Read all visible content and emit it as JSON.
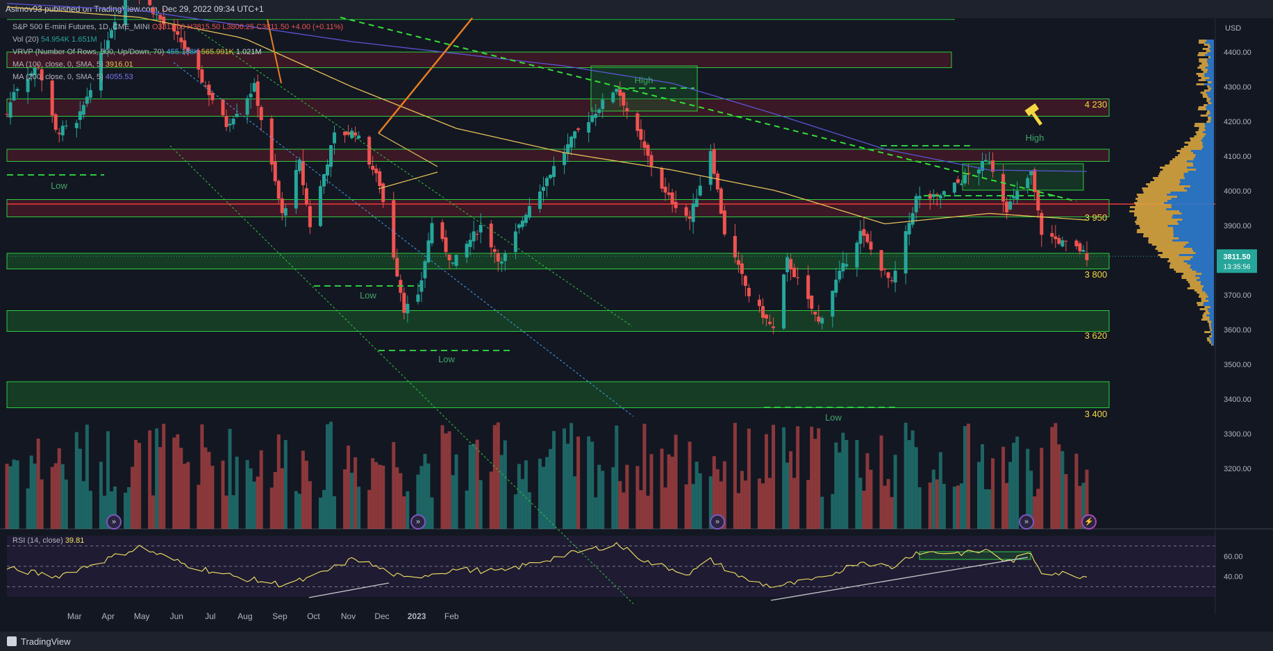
{
  "header": {
    "published": "Asimov93 published on TradingView.com, Dec 29, 2022 09:34 UTC+1"
  },
  "legend": {
    "symbol": "S&P 500 E-mini Futures, 1D, CME_MINI",
    "ohlc": "O3811.00  H3815.50  L3806.25  C3811.50  +4.00 (+0.11%)",
    "vol_label": "Vol (20)",
    "vol_values": "54.954K  1.651M",
    "vrvp_label": "VRVP (Number Of Rows, 500, Up/Down, 70)",
    "vrvp_up": "455.188K",
    "vrvp_down": "565.991K",
    "vrvp_total": "1.021M",
    "ma100_label": "MA (100, close, 0, SMA, 5)",
    "ma100_value": "3916.01",
    "ma200_label": "MA (200, close, 0, SMA, 5)",
    "ma200_value": "4055.53",
    "rsi_label": "RSI (14, close)",
    "rsi_value": "39.81"
  },
  "footer": {
    "brand": "TradingView"
  },
  "colors": {
    "background": "#131722",
    "up": "#26a69a",
    "down": "#ef5350",
    "ma100": "#e8c15a",
    "ma200": "#5b54d6",
    "zone_green": "#1a6b2a",
    "zone_red": "#6b1a2a",
    "level_label": "#f5d742",
    "trend_green": "#36e036",
    "rsi": "#f5e663"
  },
  "chart_data": {
    "type": "candlestick",
    "title": "S&P 500 E-mini Futures, 1D, CME_MINI",
    "y_axis_title": "USD",
    "ylim": [
      3150,
      4650
    ],
    "y_ticks": [
      "4400.00",
      "4300.00",
      "4200.00",
      "4100.00",
      "4000.00",
      "3900.00",
      "3800.00",
      "3700.00",
      "3600.00",
      "3500.00",
      "3400.00",
      "3300.00",
      "3200.00"
    ],
    "x_ticks": [
      "Mar",
      "Apr",
      "May",
      "Jun",
      "Jul",
      "Aug",
      "Sep",
      "Oct",
      "Nov",
      "Dec",
      "2023",
      "Feb"
    ],
    "last_price": {
      "value": "3811.50",
      "countdown": "13:35:56"
    },
    "levels": [
      {
        "label": "4 230",
        "value": 4230
      },
      {
        "label": "3 950",
        "value": 3950
      },
      {
        "label": "3 800",
        "value": 3800
      },
      {
        "label": "3 620",
        "value": 3620
      },
      {
        "label": "3 400",
        "value": 3400
      }
    ],
    "zones": [
      {
        "type": "resistance",
        "low": 4355,
        "high": 4400
      },
      {
        "type": "resistance",
        "low": 4215,
        "high": 4265
      },
      {
        "type": "resistance",
        "low": 4085,
        "high": 4120
      },
      {
        "type": "resistance",
        "low": 3925,
        "high": 3975
      },
      {
        "type": "support",
        "low": 3775,
        "high": 3820
      },
      {
        "type": "support",
        "low": 3595,
        "high": 3655
      },
      {
        "type": "support",
        "low": 3375,
        "high": 3450
      }
    ],
    "annotations": [
      "Low",
      "Low",
      "Low",
      "High",
      "High",
      "Low"
    ],
    "close_anchors": [
      {
        "x": "Feb 22",
        "y": 4220
      },
      {
        "x": "Feb 24",
        "y": 4290
      },
      {
        "x": "Mar 3",
        "y": 4360
      },
      {
        "x": "Mar 8",
        "y": 4170
      },
      {
        "x": "Mar 14",
        "y": 4190
      },
      {
        "x": "Mar 29",
        "y": 4610
      },
      {
        "x": "Apr 8",
        "y": 4480
      },
      {
        "x": "Apr 13",
        "y": 4430
      },
      {
        "x": "Apr 26",
        "y": 4190
      },
      {
        "x": "May 4",
        "y": 4300
      },
      {
        "x": "May 12",
        "y": 3930
      },
      {
        "x": "May 17",
        "y": 4080
      },
      {
        "x": "May 20",
        "y": 3900
      },
      {
        "x": "May 27",
        "y": 4160
      },
      {
        "x": "Jun 2",
        "y": 4170
      },
      {
        "x": "Jun 9",
        "y": 4020
      },
      {
        "x": "Jun 16",
        "y": 3660
      },
      {
        "x": "Jun 20",
        "y": 3690
      },
      {
        "x": "Jun 24",
        "y": 3910
      },
      {
        "x": "Jun 30",
        "y": 3790
      },
      {
        "x": "Jul 8",
        "y": 3900
      },
      {
        "x": "Jul 14",
        "y": 3790
      },
      {
        "x": "Jul 22",
        "y": 3960
      },
      {
        "x": "Aug 4",
        "y": 4160
      },
      {
        "x": "Aug 16",
        "y": 4300
      },
      {
        "x": "Aug 23",
        "y": 4140
      },
      {
        "x": "Aug 30",
        "y": 3990
      },
      {
        "x": "Sep 6",
        "y": 3920
      },
      {
        "x": "Sep 12",
        "y": 4120
      },
      {
        "x": "Sep 16",
        "y": 3880
      },
      {
        "x": "Sep 23",
        "y": 3700
      },
      {
        "x": "Sep 30",
        "y": 3600
      },
      {
        "x": "Oct 4",
        "y": 3800
      },
      {
        "x": "Oct 13",
        "y": 3620
      },
      {
        "x": "Oct 18",
        "y": 3740
      },
      {
        "x": "Oct 25",
        "y": 3880
      },
      {
        "x": "Nov 3",
        "y": 3730
      },
      {
        "x": "Nov 10",
        "y": 3980
      },
      {
        "x": "Nov 16",
        "y": 3980
      },
      {
        "x": "Nov 23",
        "y": 4030
      },
      {
        "x": "Dec 1",
        "y": 4090
      },
      {
        "x": "Dec 6",
        "y": 3950
      },
      {
        "x": "Dec 13",
        "y": 4050
      },
      {
        "x": "Dec 16",
        "y": 3880
      },
      {
        "x": "Dec 22",
        "y": 3850
      },
      {
        "x": "Dec 27",
        "y": 3830
      },
      {
        "x": "Dec 29",
        "y": 3811.5
      }
    ],
    "ma100_anchors": [
      {
        "x": "Feb 22",
        "y": 4530
      },
      {
        "x": "Apr 1",
        "y": 4500
      },
      {
        "x": "May 1",
        "y": 4440
      },
      {
        "x": "Jun 1",
        "y": 4300
      },
      {
        "x": "Jul 1",
        "y": 4180
      },
      {
        "x": "Aug 1",
        "y": 4110
      },
      {
        "x": "Sep 1",
        "y": 4060
      },
      {
        "x": "Oct 1",
        "y": 4000
      },
      {
        "x": "Nov 1",
        "y": 3905
      },
      {
        "x": "Dec 1",
        "y": 3935
      },
      {
        "x": "Dec 29",
        "y": 3916
      }
    ],
    "ma200_anchors": [
      {
        "x": "Feb 22",
        "y": 4540
      },
      {
        "x": "Apr 1",
        "y": 4520
      },
      {
        "x": "Jun 1",
        "y": 4430
      },
      {
        "x": "Aug 1",
        "y": 4360
      },
      {
        "x": "Sep 1",
        "y": 4310
      },
      {
        "x": "Oct 1",
        "y": 4220
      },
      {
        "x": "Nov 1",
        "y": 4120
      },
      {
        "x": "Dec 1",
        "y": 4060
      },
      {
        "x": "Dec 29",
        "y": 4056
      }
    ],
    "volume": {
      "label": "Vol (20)",
      "last": "1.651M",
      "ma": "54.954K"
    },
    "rsi": {
      "label": "RSI (14, close)",
      "value": 39.81,
      "ylim": [
        20,
        80
      ],
      "y_ticks": [
        "60.00",
        "40.00"
      ],
      "bands": [
        70,
        50,
        30
      ],
      "anchors": [
        {
          "x": "Feb 22",
          "y": 48
        },
        {
          "x": "Mar 8",
          "y": 40
        },
        {
          "x": "Mar 22",
          "y": 56
        },
        {
          "x": "Apr 1",
          "y": 69
        },
        {
          "x": "Apr 14",
          "y": 52
        },
        {
          "x": "Apr 28",
          "y": 40
        },
        {
          "x": "May 12",
          "y": 32
        },
        {
          "x": "May 20",
          "y": 38
        },
        {
          "x": "Jun 2",
          "y": 58
        },
        {
          "x": "Jun 16",
          "y": 38
        },
        {
          "x": "Jul 1",
          "y": 47
        },
        {
          "x": "Jul 14",
          "y": 45
        },
        {
          "x": "Aug 1",
          "y": 61
        },
        {
          "x": "Aug 16",
          "y": 72
        },
        {
          "x": "Aug 25",
          "y": 54
        },
        {
          "x": "Sep 6",
          "y": 43
        },
        {
          "x": "Sep 12",
          "y": 56
        },
        {
          "x": "Sep 22",
          "y": 37
        },
        {
          "x": "Sep 30",
          "y": 30
        },
        {
          "x": "Oct 13",
          "y": 37
        },
        {
          "x": "Oct 25",
          "y": 55
        },
        {
          "x": "Nov 3",
          "y": 49
        },
        {
          "x": "Nov 10",
          "y": 64
        },
        {
          "x": "Nov 25",
          "y": 63
        },
        {
          "x": "Dec 1",
          "y": 66
        },
        {
          "x": "Dec 6",
          "y": 54
        },
        {
          "x": "Dec 13",
          "y": 62
        },
        {
          "x": "Dec 16",
          "y": 45
        },
        {
          "x": "Dec 22",
          "y": 43
        },
        {
          "x": "Dec 29",
          "y": 39.81
        }
      ]
    }
  }
}
